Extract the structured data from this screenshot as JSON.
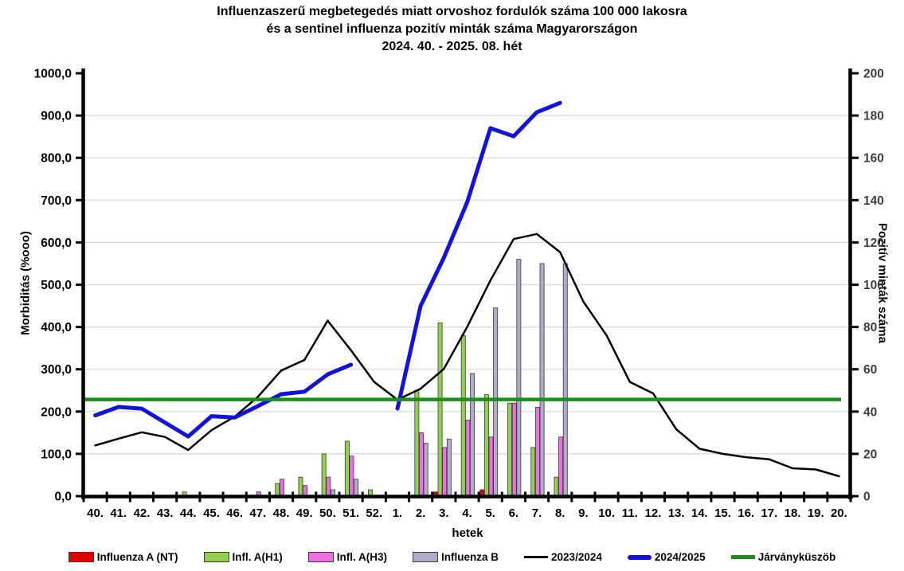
{
  "title": {
    "line1": "Influenzaszerű megbetegedés miatt orvoshoz fordulók száma 100 000 lakosra",
    "line2": "és a sentinel influenza pozitív minták száma Magyarországon",
    "line3": "2024. 40. - 2025. 08. hét"
  },
  "chart_data": {
    "type": "combo bar+line, dual axis",
    "categories": [
      "40.",
      "41.",
      "42.",
      "43.",
      "44.",
      "45.",
      "46.",
      "47.",
      "48.",
      "49.",
      "50.",
      "51.",
      "52.",
      "1.",
      "2.",
      "3.",
      "4.",
      "5.",
      "6.",
      "7.",
      "8.",
      "9.",
      "10.",
      "11.",
      "12.",
      "13.",
      "14.",
      "15.",
      "16.",
      "17.",
      "18.",
      "19.",
      "20."
    ],
    "xlabel": "hetek",
    "left_axis": {
      "label": "Morbiditás (%ooo)",
      "min": 0,
      "max": 1000,
      "step": 100,
      "decimal_comma": true
    },
    "right_axis": {
      "label": "Pozitív minták száma",
      "min": 0,
      "max": 200,
      "step": 20
    },
    "grid": "horizontal light gray",
    "bar_series": [
      {
        "name": "Influenza A (NT)",
        "color": "#e00000",
        "axis": "right",
        "values": [
          0,
          0,
          0,
          0,
          0,
          0,
          0,
          0,
          0,
          0,
          0,
          0,
          0,
          0,
          0,
          2,
          0,
          3,
          0,
          0,
          0,
          0,
          0,
          0,
          0,
          0,
          0,
          0,
          0,
          0,
          0,
          0,
          0
        ]
      },
      {
        "name": "Infl. A(H1)",
        "color": "#92d050",
        "axis": "right",
        "values": [
          0,
          0,
          0,
          0,
          2,
          0,
          0,
          0,
          6,
          9,
          20,
          26,
          3,
          0,
          50,
          82,
          76,
          48,
          44,
          23,
          9,
          0,
          0,
          0,
          0,
          0,
          0,
          0,
          0,
          0,
          0,
          0,
          0
        ]
      },
      {
        "name": "Infl. A(H3)",
        "color": "#ee6fe3",
        "axis": "right",
        "values": [
          0,
          0,
          0,
          0,
          0,
          0,
          0,
          2,
          8,
          5,
          9,
          19,
          0,
          0,
          30,
          23,
          36,
          28,
          44,
          42,
          28,
          0,
          0,
          0,
          0,
          0,
          0,
          0,
          0,
          0,
          0,
          0,
          0
        ]
      },
      {
        "name": "Influenza B",
        "color": "#b2abcb",
        "axis": "right",
        "values": [
          0,
          0,
          0,
          0,
          0,
          0,
          0,
          0,
          0,
          0,
          3,
          8,
          0,
          0,
          25,
          27,
          58,
          89,
          112,
          110,
          110,
          0,
          0,
          0,
          0,
          0,
          0,
          0,
          0,
          0,
          0,
          0,
          0
        ]
      }
    ],
    "line_series": [
      {
        "name": "2023/2024",
        "color": "#000000",
        "stroke_width": 2.5,
        "axis": "left",
        "values": [
          120,
          136,
          151,
          140,
          109,
          156,
          188,
          235,
          297,
          322,
          415,
          345,
          270,
          228,
          254,
          301,
          400,
          510,
          608,
          620,
          577,
          460,
          380,
          270,
          243,
          158,
          112,
          100,
          92,
          87,
          66,
          63,
          47
        ]
      },
      {
        "name": "2024/2025",
        "color": "#1212dd",
        "stroke_width": 5,
        "axis": "left",
        "values": [
          191,
          211,
          207,
          174,
          141,
          189,
          186,
          213,
          241,
          247,
          288,
          311,
          null,
          207,
          450,
          564,
          695,
          870,
          851,
          908,
          930,
          null,
          null,
          null,
          null,
          null,
          null,
          null,
          null,
          null,
          null,
          null,
          null
        ]
      }
    ],
    "threshold": {
      "name": "Járványküszöb",
      "color": "#179117",
      "stroke_width": 4.5,
      "axis": "left",
      "value": 228.6
    },
    "legend_position": "bottom"
  }
}
